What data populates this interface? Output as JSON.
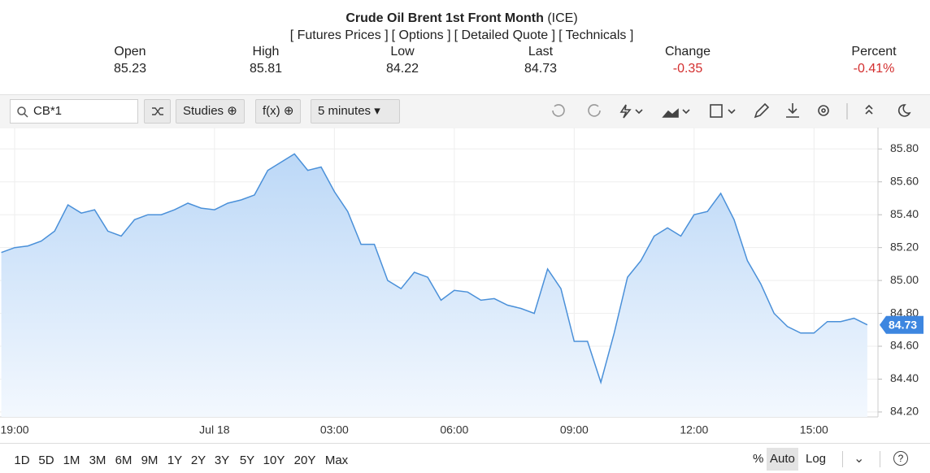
{
  "header": {
    "title": "Crude Oil Brent 1st Front Month",
    "exchange": "(ICE)",
    "links": [
      "[ Futures Prices ]",
      "[ Options ]",
      "[ Detailed Quote ]",
      "[ Technicals ]"
    ],
    "stats": [
      {
        "label": "Open",
        "value": "85.23"
      },
      {
        "label": "High",
        "value": "85.81"
      },
      {
        "label": "Low",
        "value": "84.22"
      },
      {
        "label": "Last",
        "value": "84.73"
      },
      {
        "label": "Change",
        "value": "-0.35"
      },
      {
        "label": "Percent",
        "value": "-0.41%"
      }
    ]
  },
  "toolbar": {
    "symbol": "CB*1",
    "studies": "Studies",
    "fx": "f(x)",
    "interval": "5 minutes"
  },
  "chart_data": {
    "type": "area",
    "x": [
      "18:40",
      "19:00",
      "19:20",
      "19:40",
      "20:00",
      "20:20",
      "20:40",
      "21:00",
      "21:20",
      "21:40",
      "22:00",
      "22:20",
      "22:40",
      "23:00",
      "23:20",
      "23:40",
      "00:00",
      "00:20",
      "00:40",
      "01:00",
      "01:20",
      "01:40",
      "02:00",
      "02:20",
      "02:40",
      "03:00",
      "03:20",
      "03:40",
      "04:00",
      "04:20",
      "04:40",
      "05:00",
      "05:20",
      "05:40",
      "06:00",
      "06:20",
      "06:40",
      "07:00",
      "07:20",
      "07:40",
      "08:00",
      "08:20",
      "08:40",
      "09:00",
      "09:20",
      "09:40",
      "10:00",
      "10:20",
      "10:40",
      "11:00",
      "11:20",
      "11:40",
      "12:00",
      "12:20",
      "12:40",
      "13:00",
      "13:20",
      "13:40",
      "14:00",
      "14:20",
      "14:40",
      "15:00",
      "15:20",
      "15:40",
      "16:00",
      "16:20"
    ],
    "series": [
      {
        "color": "#4a90d9",
        "values": [
          85.17,
          85.2,
          85.21,
          85.24,
          85.3,
          85.46,
          85.41,
          85.43,
          85.3,
          85.27,
          85.37,
          85.4,
          85.4,
          85.43,
          85.47,
          85.44,
          85.43,
          85.47,
          85.49,
          85.52,
          85.67,
          85.72,
          85.77,
          85.67,
          85.69,
          85.54,
          85.42,
          85.22,
          85.22,
          85.0,
          84.95,
          85.05,
          85.02,
          84.88,
          84.94,
          84.93,
          84.88,
          84.89,
          84.85,
          84.83,
          84.8,
          85.07,
          84.95,
          84.63,
          84.63,
          84.38,
          84.68,
          85.02,
          85.12,
          85.27,
          85.32,
          85.27,
          85.4,
          85.42,
          85.53,
          85.37,
          85.12,
          84.98,
          84.8,
          84.72,
          84.68,
          84.68,
          84.75,
          84.75,
          84.77,
          84.73
        ]
      }
    ],
    "xlim": [
      "18:38",
      "16:36"
    ],
    "xticks": [
      "19:00",
      {
        "value": "00:00",
        "label": "Jul 18"
      },
      "03:00",
      "06:00",
      "09:00",
      "12:00",
      "15:00"
    ],
    "ylim": [
      84.17,
      85.93
    ],
    "yticks": [
      {
        "value": 84.2,
        "label": "84.20"
      },
      {
        "value": 84.4,
        "label": "84.40"
      },
      {
        "value": 84.6,
        "label": "84.60"
      },
      {
        "value": 84.8,
        "label": "84.80"
      },
      {
        "value": 85,
        "label": "85.00"
      },
      {
        "value": 85.2,
        "label": "85.20"
      },
      {
        "value": 85.4,
        "label": "85.40"
      },
      {
        "value": 85.6,
        "label": "85.60"
      },
      {
        "value": 85.8,
        "label": "85.80"
      }
    ],
    "last_value": 84.73,
    "grid": true
  },
  "footer": {
    "ranges": [
      "1D",
      "5D",
      "1M",
      "3M",
      "6M",
      "9M",
      "1Y",
      "2Y",
      "3Y",
      "5Y",
      "10Y",
      "20Y",
      "Max"
    ],
    "options": [
      "%",
      "Auto",
      "Log"
    ],
    "selected_option": "Auto"
  }
}
